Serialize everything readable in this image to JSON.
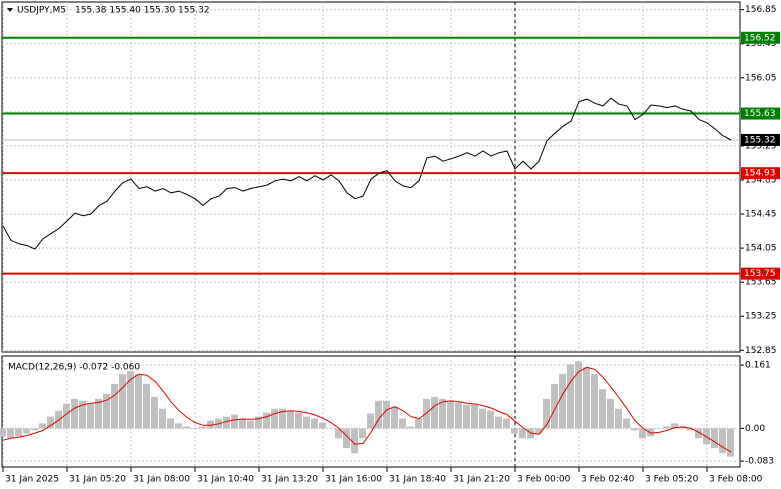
{
  "chart_data": [
    {
      "type": "line",
      "title": "USDJPY,M5",
      "subtitle": "155.38 155.40 155.30 155.32",
      "color": "#000000",
      "grid": true,
      "separator": 64,
      "values": [
        154.31,
        154.14,
        154.1,
        154.08,
        154.04,
        154.16,
        154.22,
        154.28,
        154.37,
        154.46,
        154.43,
        154.45,
        154.55,
        154.6,
        154.72,
        154.82,
        154.86,
        154.75,
        154.77,
        154.72,
        154.75,
        154.7,
        154.72,
        154.68,
        154.63,
        154.55,
        154.63,
        154.66,
        154.75,
        154.76,
        154.72,
        154.75,
        154.77,
        154.79,
        154.84,
        154.86,
        154.84,
        154.89,
        154.84,
        154.9,
        154.85,
        154.91,
        154.84,
        154.7,
        154.63,
        154.66,
        154.86,
        154.93,
        154.96,
        154.84,
        154.78,
        154.76,
        154.84,
        155.11,
        155.13,
        155.07,
        155.1,
        155.13,
        155.17,
        155.13,
        155.19,
        155.13,
        155.17,
        155.19,
        154.98,
        155.07,
        154.98,
        155.07,
        155.31,
        155.4,
        155.48,
        155.54,
        155.77,
        155.8,
        155.75,
        155.72,
        155.81,
        155.74,
        155.72,
        155.56,
        155.62,
        155.73,
        155.72,
        155.7,
        155.72,
        155.68,
        155.66,
        155.56,
        155.52,
        155.45,
        155.37,
        155.32
      ],
      "xlim": [
        0,
        92
      ],
      "xticks": [
        {
          "value": 0,
          "label": "31 Jan 2025"
        },
        {
          "value": 8,
          "label": "31 Jan 05:20"
        },
        {
          "value": 16,
          "label": "31 Jan 08:00"
        },
        {
          "value": 24,
          "label": "31 Jan 10:40"
        },
        {
          "value": 32,
          "label": "31 Jan 13:20"
        },
        {
          "value": 40,
          "label": "31 Jan 16:00"
        },
        {
          "value": 48,
          "label": "31 Jan 18:40"
        },
        {
          "value": 56,
          "label": "31 Jan 21:20"
        },
        {
          "value": 64,
          "label": "3 Feb 00:00"
        },
        {
          "value": 72,
          "label": "3 Feb 02:40"
        },
        {
          "value": 80,
          "label": "3 Feb 05:20"
        },
        {
          "value": 88,
          "label": "3 Feb 08:00"
        }
      ],
      "ylim": [
        152.83,
        156.94
      ],
      "yticks": [
        156.85,
        156.45,
        156.05,
        155.65,
        155.25,
        154.85,
        154.45,
        154.05,
        153.65,
        153.25,
        152.85
      ],
      "levels": [
        {
          "value": 156.52,
          "color": "#008000"
        },
        {
          "value": 155.63,
          "color": "#008000"
        },
        {
          "value": 154.93,
          "color": "#e00000"
        },
        {
          "value": 153.75,
          "color": "#e00000"
        }
      ]
    },
    {
      "type": "macd",
      "title": "MACD(12,26,9) -0.072 -0.060",
      "color": "#c0c0c0",
      "signal_color": "#e00000",
      "values": [
        -0.02,
        -0.025,
        -0.02,
        -0.013,
        -0.005,
        0.013,
        0.03,
        0.045,
        0.063,
        0.075,
        0.07,
        0.063,
        0.075,
        0.088,
        0.113,
        0.138,
        0.146,
        0.138,
        0.113,
        0.08,
        0.05,
        0.025,
        0.013,
        0.005,
        0.0,
        0.005,
        0.02,
        0.025,
        0.03,
        0.035,
        0.025,
        0.02,
        0.03,
        0.04,
        0.05,
        0.05,
        0.045,
        0.04,
        0.03,
        0.025,
        0.015,
        0.0,
        -0.025,
        -0.05,
        -0.063,
        -0.025,
        0.038,
        0.07,
        0.07,
        0.055,
        0.025,
        0.005,
        0.025,
        0.075,
        0.08,
        0.075,
        0.07,
        0.065,
        0.06,
        0.06,
        0.05,
        0.045,
        0.03,
        0.025,
        -0.013,
        -0.025,
        -0.025,
        -0.013,
        0.075,
        0.113,
        0.138,
        0.163,
        0.17,
        0.156,
        0.138,
        0.1,
        0.075,
        0.05,
        0.025,
        -0.005,
        -0.025,
        -0.02,
        0.0,
        0.005,
        0.013,
        0.005,
        -0.005,
        -0.025,
        -0.04,
        -0.05,
        -0.063,
        -0.072
      ],
      "signal_values": [
        -0.03,
        -0.025,
        -0.022,
        -0.018,
        -0.012,
        -0.005,
        0.008,
        0.022,
        0.038,
        0.052,
        0.06,
        0.064,
        0.066,
        0.072,
        0.085,
        0.105,
        0.125,
        0.138,
        0.135,
        0.12,
        0.095,
        0.068,
        0.045,
        0.028,
        0.015,
        0.008,
        0.008,
        0.012,
        0.018,
        0.022,
        0.024,
        0.023,
        0.025,
        0.03,
        0.038,
        0.043,
        0.045,
        0.043,
        0.04,
        0.034,
        0.026,
        0.015,
        0.0,
        -0.02,
        -0.04,
        -0.038,
        -0.01,
        0.025,
        0.048,
        0.055,
        0.045,
        0.03,
        0.025,
        0.04,
        0.058,
        0.068,
        0.07,
        0.068,
        0.064,
        0.062,
        0.058,
        0.052,
        0.043,
        0.035,
        0.018,
        0.002,
        -0.012,
        -0.015,
        0.01,
        0.05,
        0.088,
        0.12,
        0.145,
        0.155,
        0.15,
        0.13,
        0.105,
        0.078,
        0.05,
        0.02,
        0.0,
        -0.012,
        -0.01,
        -0.005,
        0.002,
        0.004,
        0.0,
        -0.01,
        -0.022,
        -0.035,
        -0.048,
        -0.06
      ],
      "ylim": [
        -0.098,
        0.184
      ],
      "yticks": [
        0.161,
        {
          "value": 0,
          "label": "0.00"
        },
        -0.083
      ]
    }
  ]
}
